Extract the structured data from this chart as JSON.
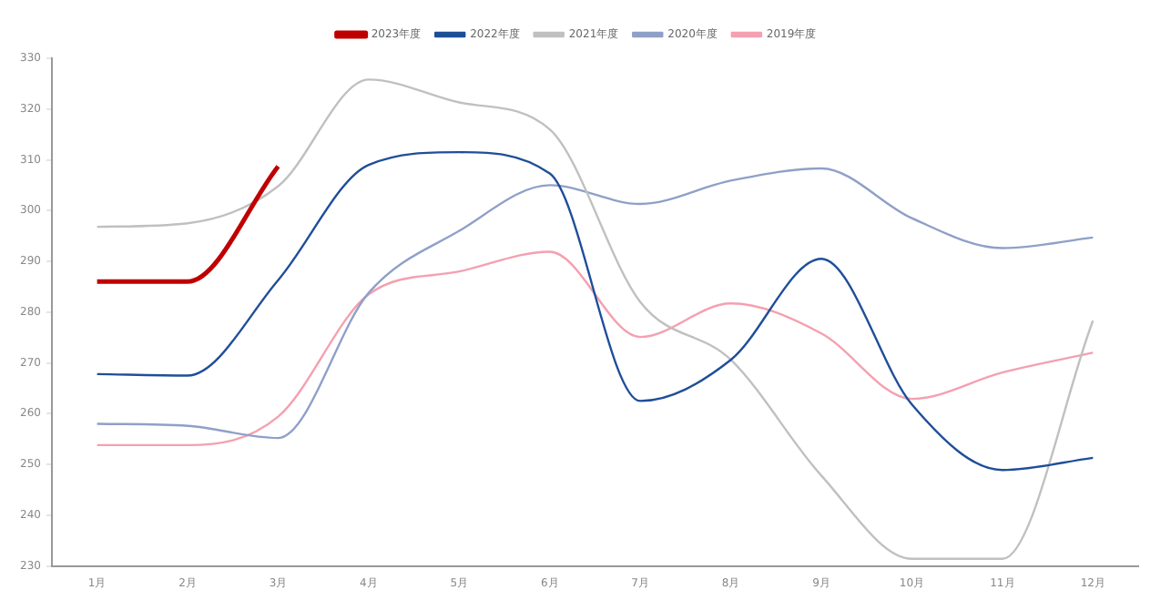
{
  "chart_data": {
    "type": "line",
    "categories": [
      "1月",
      "2月",
      "3月",
      "4月",
      "5月",
      "6月",
      "7月",
      "8月",
      "9月",
      "10月",
      "11月",
      "12月"
    ],
    "series": [
      {
        "name": "2023年度",
        "color": "#c00000",
        "values": [
          286,
          286,
          308.7,
          null,
          null,
          null,
          null,
          null,
          null,
          null,
          null,
          null
        ]
      },
      {
        "name": "2022年度",
        "color": "#1f4e99",
        "values": [
          267.8,
          267.5,
          286.3,
          309,
          311.5,
          307.3,
          262.5,
          270.6,
          290.5,
          261.8,
          248.9,
          251.3
        ]
      },
      {
        "name": "2021年度",
        "color": "#c0c0c0",
        "values": [
          296.8,
          297.5,
          304.8,
          325.8,
          321.3,
          316,
          282,
          270.6,
          247.8,
          231.4,
          231.4,
          278.3
        ]
      },
      {
        "name": "2020年度",
        "color": "#8fa0c8",
        "values": [
          258,
          257.6,
          255.2,
          283.8,
          296,
          305,
          301.3,
          305.9,
          308.3,
          298.5,
          292.6,
          294.7
        ]
      },
      {
        "name": "2019年度",
        "color": "#f4a0b0",
        "values": [
          253.8,
          253.8,
          259.4,
          283.5,
          288,
          291.9,
          275.1,
          281.7,
          275.8,
          262.9,
          268.1,
          272
        ]
      }
    ],
    "ylim": [
      230,
      330
    ],
    "yticks": [
      230,
      240,
      250,
      260,
      270,
      280,
      290,
      300,
      310,
      320,
      330
    ],
    "grid": false,
    "legend": "top",
    "marker": "none",
    "line_style": "solid"
  }
}
